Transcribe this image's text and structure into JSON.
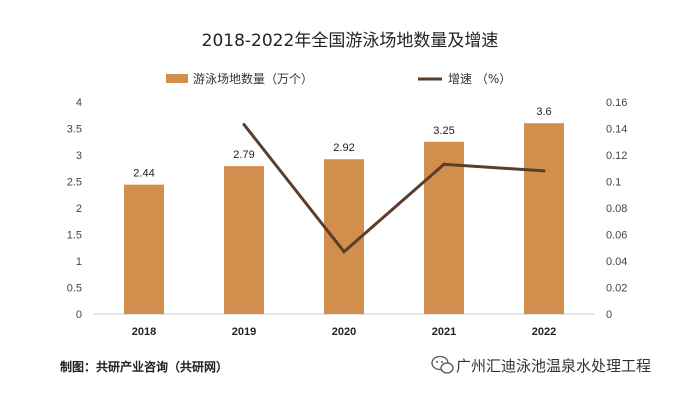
{
  "chart_data": {
    "type": "bar",
    "title": "2018-2022年全国游泳场地数量及增速",
    "categories": [
      "2018",
      "2019",
      "2020",
      "2021",
      "2022"
    ],
    "series": [
      {
        "name": "游泳场地数量（万个）",
        "kind": "bar",
        "axis": "left",
        "values": [
          2.44,
          2.79,
          2.92,
          3.25,
          3.6
        ],
        "color": "#D28E4D"
      },
      {
        "name": "增速 （%）",
        "kind": "line",
        "axis": "right",
        "values": [
          null,
          0.143,
          0.047,
          0.113,
          0.108
        ],
        "color": "#5A3E2B"
      }
    ],
    "y_left": {
      "range": [
        0,
        4
      ],
      "ticks": [
        "0",
        "0.5",
        "1",
        "1.5",
        "2",
        "2.5",
        "3",
        "3.5",
        "4"
      ]
    },
    "y_right": {
      "range": [
        0,
        0.16
      ],
      "ticks": [
        "0",
        "0.02",
        "0.04",
        "0.06",
        "0.08",
        "0.1",
        "0.12",
        "0.14",
        "0.16"
      ]
    },
    "data_labels": [
      "2.44",
      "2.79",
      "2.92",
      "3.25",
      "3.6"
    ],
    "grid": false,
    "legend_position": "top"
  },
  "source": "制图：共研产业咨询（共研网）",
  "watermark": "广州汇迪泳池温泉水处理工程"
}
